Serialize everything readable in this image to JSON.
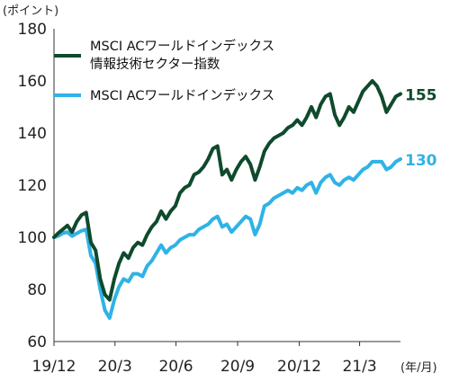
{
  "chart_data": {
    "type": "line",
    "y_unit": "(ポイント)",
    "x_unit": "(年/月)",
    "ylim": [
      60,
      180
    ],
    "yticks": [
      60,
      80,
      100,
      120,
      140,
      160,
      180
    ],
    "x_tick_labels": [
      "19/12",
      "20/3",
      "20/6",
      "20/9",
      "20/12",
      "21/3"
    ],
    "xlim": [
      "2019-12-31",
      "2021-05-31"
    ],
    "grid": false,
    "legend_position": "top-left",
    "series": [
      {
        "name_line1": "MSCI ACワールドインデックス",
        "name_line2": "情報技術セクター指数",
        "color": "#0f4a2c",
        "end_label": "155",
        "points": [
          [
            "2019-12-31",
            100.0
          ],
          [
            "2020-01-06",
            101.5
          ],
          [
            "2020-01-13",
            103.0
          ],
          [
            "2020-01-20",
            104.5
          ],
          [
            "2020-01-27",
            102.0
          ],
          [
            "2020-02-03",
            106.0
          ],
          [
            "2020-02-10",
            108.5
          ],
          [
            "2020-02-17",
            109.5
          ],
          [
            "2020-02-24",
            98.0
          ],
          [
            "2020-03-02",
            95.0
          ],
          [
            "2020-03-09",
            84.0
          ],
          [
            "2020-03-16",
            78.0
          ],
          [
            "2020-03-23",
            76.0
          ],
          [
            "2020-03-30",
            84.0
          ],
          [
            "2020-04-06",
            90.0
          ],
          [
            "2020-04-13",
            94.0
          ],
          [
            "2020-04-20",
            92.0
          ],
          [
            "2020-04-27",
            96.0
          ],
          [
            "2020-05-04",
            98.0
          ],
          [
            "2020-05-11",
            97.0
          ],
          [
            "2020-05-18",
            101.0
          ],
          [
            "2020-05-25",
            104.0
          ],
          [
            "2020-06-01",
            106.0
          ],
          [
            "2020-06-08",
            110.0
          ],
          [
            "2020-06-15",
            107.0
          ],
          [
            "2020-06-22",
            110.0
          ],
          [
            "2020-06-29",
            112.0
          ],
          [
            "2020-07-06",
            117.0
          ],
          [
            "2020-07-13",
            119.0
          ],
          [
            "2020-07-20",
            120.0
          ],
          [
            "2020-07-27",
            124.0
          ],
          [
            "2020-08-03",
            125.0
          ],
          [
            "2020-08-10",
            127.0
          ],
          [
            "2020-08-17",
            130.0
          ],
          [
            "2020-08-24",
            134.0
          ],
          [
            "2020-08-31",
            135.0
          ],
          [
            "2020-09-07",
            124.0
          ],
          [
            "2020-09-14",
            126.0
          ],
          [
            "2020-09-21",
            122.0
          ],
          [
            "2020-09-28",
            126.0
          ],
          [
            "2020-10-05",
            129.0
          ],
          [
            "2020-10-12",
            131.0
          ],
          [
            "2020-10-19",
            128.0
          ],
          [
            "2020-10-26",
            122.0
          ],
          [
            "2020-11-02",
            127.0
          ],
          [
            "2020-11-09",
            133.0
          ],
          [
            "2020-11-16",
            136.0
          ],
          [
            "2020-11-23",
            138.0
          ],
          [
            "2020-11-30",
            139.0
          ],
          [
            "2020-12-07",
            140.0
          ],
          [
            "2020-12-14",
            142.0
          ],
          [
            "2020-12-21",
            143.0
          ],
          [
            "2020-12-28",
            145.0
          ],
          [
            "2021-01-04",
            143.0
          ],
          [
            "2021-01-11",
            146.0
          ],
          [
            "2021-01-18",
            150.0
          ],
          [
            "2021-01-25",
            146.0
          ],
          [
            "2021-02-01",
            151.0
          ],
          [
            "2021-02-08",
            154.0
          ],
          [
            "2021-02-15",
            155.0
          ],
          [
            "2021-02-22",
            147.0
          ],
          [
            "2021-03-01",
            143.0
          ],
          [
            "2021-03-08",
            146.0
          ],
          [
            "2021-03-15",
            150.0
          ],
          [
            "2021-03-22",
            148.0
          ],
          [
            "2021-03-29",
            152.0
          ],
          [
            "2021-04-05",
            156.0
          ],
          [
            "2021-04-12",
            158.0
          ],
          [
            "2021-04-19",
            160.0
          ],
          [
            "2021-04-26",
            158.0
          ],
          [
            "2021-05-03",
            154.0
          ],
          [
            "2021-05-10",
            148.0
          ],
          [
            "2021-05-17",
            151.0
          ],
          [
            "2021-05-24",
            154.0
          ],
          [
            "2021-05-31",
            155.0
          ]
        ]
      },
      {
        "name_line1": "MSCI ACワールドインデックス",
        "color": "#2fb3e6",
        "end_label": "130",
        "points": [
          [
            "2019-12-31",
            100.0
          ],
          [
            "2020-01-06",
            100.5
          ],
          [
            "2020-01-13",
            101.5
          ],
          [
            "2020-01-20",
            102.0
          ],
          [
            "2020-01-27",
            100.5
          ],
          [
            "2020-02-03",
            101.5
          ],
          [
            "2020-02-10",
            102.5
          ],
          [
            "2020-02-17",
            103.0
          ],
          [
            "2020-02-24",
            93.0
          ],
          [
            "2020-03-02",
            90.0
          ],
          [
            "2020-03-09",
            80.0
          ],
          [
            "2020-03-16",
            72.0
          ],
          [
            "2020-03-23",
            69.0
          ],
          [
            "2020-03-30",
            76.0
          ],
          [
            "2020-04-06",
            81.0
          ],
          [
            "2020-04-13",
            84.0
          ],
          [
            "2020-04-20",
            83.0
          ],
          [
            "2020-04-27",
            86.0
          ],
          [
            "2020-05-04",
            86.0
          ],
          [
            "2020-05-11",
            85.0
          ],
          [
            "2020-05-18",
            89.0
          ],
          [
            "2020-05-25",
            91.0
          ],
          [
            "2020-06-01",
            94.0
          ],
          [
            "2020-06-08",
            97.0
          ],
          [
            "2020-06-15",
            94.0
          ],
          [
            "2020-06-22",
            96.0
          ],
          [
            "2020-06-29",
            97.0
          ],
          [
            "2020-07-06",
            99.0
          ],
          [
            "2020-07-13",
            100.0
          ],
          [
            "2020-07-20",
            101.0
          ],
          [
            "2020-07-27",
            101.0
          ],
          [
            "2020-08-03",
            103.0
          ],
          [
            "2020-08-10",
            104.0
          ],
          [
            "2020-08-17",
            105.0
          ],
          [
            "2020-08-24",
            107.0
          ],
          [
            "2020-08-31",
            108.0
          ],
          [
            "2020-09-07",
            104.0
          ],
          [
            "2020-09-14",
            105.0
          ],
          [
            "2020-09-21",
            102.0
          ],
          [
            "2020-09-28",
            104.0
          ],
          [
            "2020-10-05",
            106.0
          ],
          [
            "2020-10-12",
            108.0
          ],
          [
            "2020-10-19",
            107.0
          ],
          [
            "2020-10-26",
            101.0
          ],
          [
            "2020-11-02",
            105.0
          ],
          [
            "2020-11-09",
            112.0
          ],
          [
            "2020-11-16",
            113.0
          ],
          [
            "2020-11-23",
            115.0
          ],
          [
            "2020-11-30",
            116.0
          ],
          [
            "2020-12-07",
            117.0
          ],
          [
            "2020-12-14",
            118.0
          ],
          [
            "2020-12-21",
            117.0
          ],
          [
            "2020-12-28",
            119.0
          ],
          [
            "2021-01-04",
            118.0
          ],
          [
            "2021-01-11",
            120.0
          ],
          [
            "2021-01-18",
            121.0
          ],
          [
            "2021-01-25",
            117.0
          ],
          [
            "2021-02-01",
            121.0
          ],
          [
            "2021-02-08",
            123.0
          ],
          [
            "2021-02-15",
            124.0
          ],
          [
            "2021-02-22",
            121.0
          ],
          [
            "2021-03-01",
            120.0
          ],
          [
            "2021-03-08",
            122.0
          ],
          [
            "2021-03-15",
            123.0
          ],
          [
            "2021-03-22",
            122.0
          ],
          [
            "2021-03-29",
            124.0
          ],
          [
            "2021-04-05",
            126.0
          ],
          [
            "2021-04-12",
            127.0
          ],
          [
            "2021-04-19",
            129.0
          ],
          [
            "2021-04-26",
            129.0
          ],
          [
            "2021-05-03",
            129.0
          ],
          [
            "2021-05-10",
            126.0
          ],
          [
            "2021-05-17",
            127.0
          ],
          [
            "2021-05-24",
            129.0
          ],
          [
            "2021-05-31",
            130.0
          ]
        ]
      }
    ]
  }
}
